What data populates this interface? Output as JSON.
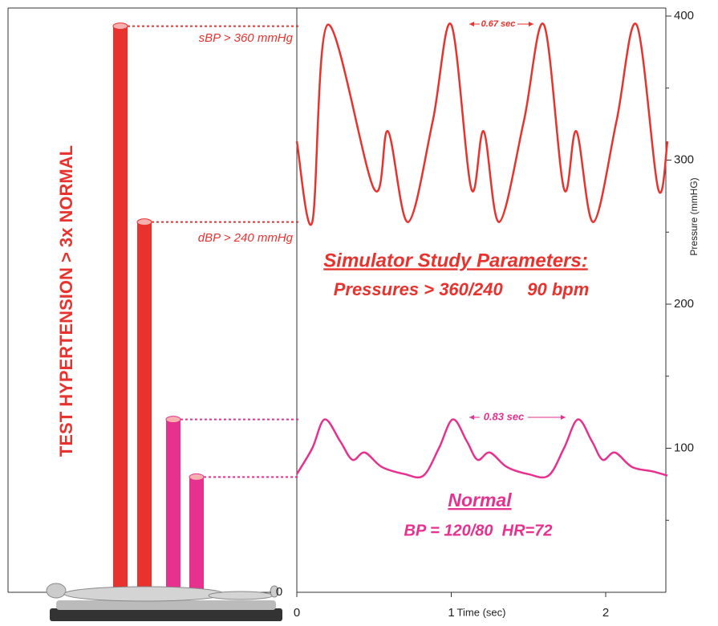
{
  "chart_data": {
    "type": "line",
    "title": "TEST HYPERTENSION > 3x NORMAL",
    "ylabel": "Pressure (mmHG)",
    "xlabel": "Time (sec)",
    "xlim": [
      0,
      2.4
    ],
    "xticks": [
      0,
      1,
      2
    ],
    "ylim": [
      0,
      400
    ],
    "yticks": [
      100,
      200,
      300,
      400
    ],
    "yminor": [
      50,
      150,
      250,
      350
    ],
    "bar_ticks": [
      0
    ],
    "bars": {
      "values": [
        393,
        257,
        120,
        80
      ],
      "colors": [
        "#e8322d",
        "#e8322d",
        "#e6318f",
        "#e6318f"
      ]
    },
    "series": [
      {
        "name": "Simulator",
        "color": "#e8322d",
        "x": [
          0,
          0.1,
          0.2,
          0.5,
          0.59,
          0.72,
          0.88,
          1.0,
          1.13,
          1.21,
          1.31,
          1.47,
          1.6,
          1.73,
          1.81,
          1.92,
          2.07,
          2.2,
          2.34,
          2.4
        ],
        "values": [
          313,
          257,
          394,
          280,
          320,
          257,
          327,
          394,
          280,
          320,
          257,
          327,
          394,
          280,
          320,
          257,
          327,
          394,
          280,
          313
        ]
      },
      {
        "name": "Normal",
        "color": "#e6318f",
        "x": [
          0,
          0.1,
          0.18,
          0.28,
          0.36,
          0.44,
          0.55,
          0.7,
          0.82,
          0.92,
          1.01,
          1.1,
          1.17,
          1.25,
          1.36,
          1.5,
          1.63,
          1.73,
          1.82,
          1.91,
          1.98,
          2.06,
          2.17,
          2.3,
          2.4
        ],
        "values": [
          82,
          100,
          120,
          105,
          92,
          97,
          87,
          82,
          81,
          100,
          120,
          105,
          92,
          97,
          87,
          82,
          81,
          100,
          120,
          105,
          92,
          97,
          87,
          84,
          81
        ]
      }
    ],
    "annotations": {
      "sbp": "sBP > 360 mmHg",
      "dbp": "dBP > 240 mmHg",
      "period_sim": "0.67 sec",
      "period_normal": "0.83 sec",
      "sim_title": "Simulator Study Parameters:",
      "sim_params": "Pressures > 360/240     90 bpm",
      "normal_title": "Normal",
      "normal_params": "BP = 120/80  HR=72"
    }
  }
}
